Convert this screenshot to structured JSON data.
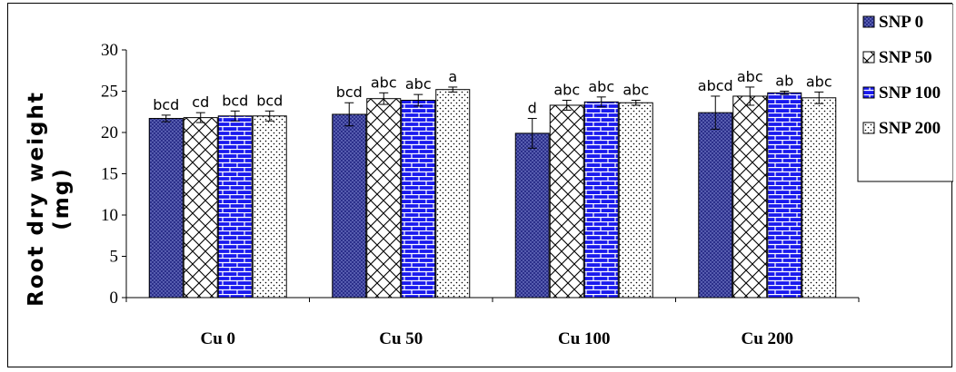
{
  "chart_data": {
    "type": "bar",
    "ylabel": [
      "Root dry weight",
      "(mg)"
    ],
    "ylim": [
      0,
      30
    ],
    "yticks": [
      0,
      5,
      10,
      15,
      20,
      25,
      30
    ],
    "categories": [
      "Cu 0",
      "Cu 50",
      "Cu 100",
      "Cu 200"
    ],
    "series": [
      {
        "name": "SNP 0",
        "pattern": "dots",
        "color": "#2b2f8a",
        "values": [
          21.7,
          22.2,
          19.9,
          22.4
        ],
        "errors": [
          0.4,
          1.4,
          1.8,
          2.0
        ],
        "labels": [
          "bcd",
          "bcd",
          "d",
          "abcd"
        ]
      },
      {
        "name": "SNP 50",
        "pattern": "lattice",
        "color": "#ffffff",
        "values": [
          21.8,
          24.1,
          23.3,
          24.4
        ],
        "errors": [
          0.6,
          0.7,
          0.6,
          1.1
        ],
        "labels": [
          "cd",
          "abc",
          "abc",
          "abc"
        ]
      },
      {
        "name": "SNP 100",
        "pattern": "brick",
        "color": "#1a1aee",
        "values": [
          22.0,
          23.9,
          23.7,
          24.8
        ],
        "errors": [
          0.6,
          0.7,
          0.6,
          0.2
        ],
        "labels": [
          "bcd",
          "abc",
          "abc",
          "ab"
        ]
      },
      {
        "name": "SNP 200",
        "pattern": "sparse-dots",
        "color": "#ffffff",
        "values": [
          22.0,
          25.2,
          23.6,
          24.2
        ],
        "errors": [
          0.6,
          0.3,
          0.3,
          0.7
        ],
        "labels": [
          "bcd",
          "a",
          "abc",
          "abc"
        ]
      }
    ],
    "legend": "right",
    "grid": false
  }
}
